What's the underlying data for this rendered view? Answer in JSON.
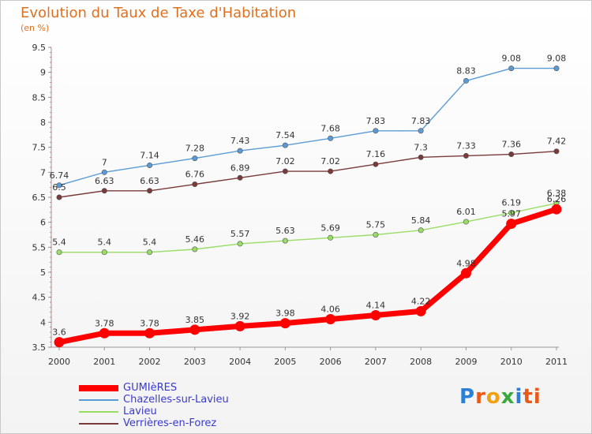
{
  "header": {
    "title": "Evolution du Taux de Taxe d'Habitation",
    "subtitle": "(en %)"
  },
  "logo": {
    "text": "Proxiti",
    "letters": [
      "P",
      "r",
      "o",
      "x",
      "i",
      "ti"
    ]
  },
  "chart_data": {
    "type": "line",
    "x": [
      "2000",
      "2001",
      "2002",
      "2003",
      "2004",
      "2005",
      "2006",
      "2007",
      "2008",
      "2009",
      "2010",
      "2011"
    ],
    "ylim": [
      3.5,
      9.5
    ],
    "yticks": [
      "3.5",
      "4",
      "4.5",
      "5",
      "5.5",
      "6",
      "6.5",
      "7",
      "7.5",
      "8",
      "8.5",
      "9",
      "9.5"
    ],
    "grid": false,
    "legend": "bottom-left",
    "series": [
      {
        "name": "GUMIèRES",
        "color": "#ff0000",
        "values": [
          3.6,
          3.78,
          3.78,
          3.85,
          3.92,
          3.98,
          4.06,
          4.14,
          4.22,
          4.98,
          5.97,
          6.26
        ],
        "labels": [
          "3.6",
          "3.78",
          "3.78",
          "3.85",
          "3.92",
          "3.98",
          "4.06",
          "4.14",
          "4.22",
          "4.98",
          "5.97",
          "6.26"
        ]
      },
      {
        "name": "Chazelles-sur-Lavieu",
        "color": "#5b9bd5",
        "values": [
          6.74,
          7,
          7.14,
          7.28,
          7.43,
          7.54,
          7.68,
          7.83,
          7.83,
          8.83,
          9.08,
          9.08
        ],
        "labels": [
          "6.74",
          "7",
          "7.14",
          "7.28",
          "7.43",
          "7.54",
          "7.68",
          "7.83",
          "7.83",
          "8.83",
          "9.08",
          "9.08"
        ]
      },
      {
        "name": "Lavieu",
        "color": "#99dd66",
        "values": [
          5.4,
          5.4,
          5.4,
          5.46,
          5.57,
          5.63,
          5.69,
          5.75,
          5.84,
          6.01,
          6.19,
          6.38
        ],
        "labels": [
          "5.4",
          "5.4",
          "5.4",
          "5.46",
          "5.57",
          "5.63",
          "5.69",
          "5.75",
          "5.84",
          "6.01",
          "6.19",
          "6.38"
        ]
      },
      {
        "name": "Verrières-en-Forez",
        "color": "#7a3a3a",
        "values": [
          6.5,
          6.63,
          6.63,
          6.76,
          6.89,
          7.02,
          7.02,
          7.16,
          7.3,
          7.33,
          7.36,
          7.42
        ],
        "labels": [
          "6.5",
          "6.63",
          "6.63",
          "6.76",
          "6.89",
          "7.02",
          "7.02",
          "7.16",
          "7.3",
          "7.33",
          "7.36",
          "7.42"
        ]
      }
    ]
  }
}
